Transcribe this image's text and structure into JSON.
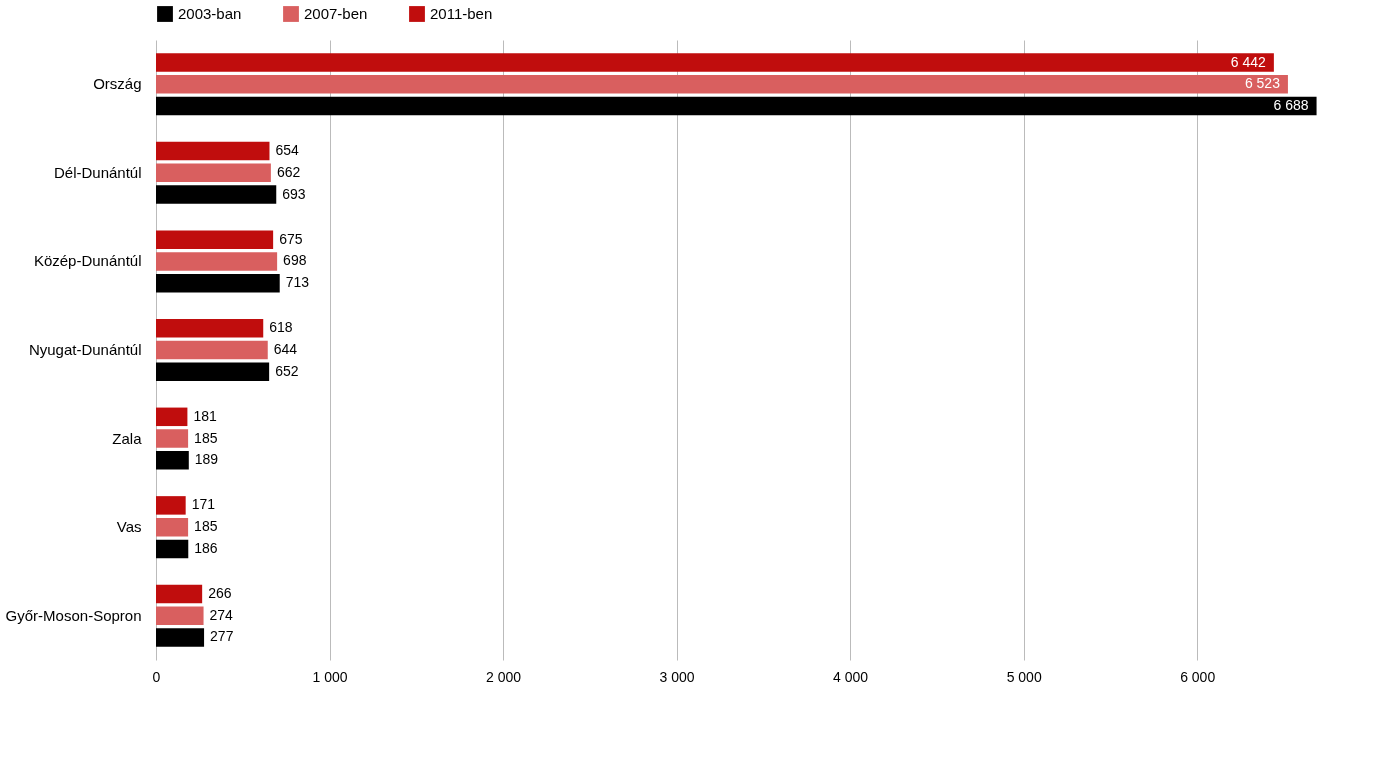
{
  "chart_data": {
    "type": "bar",
    "orientation": "horizontal",
    "categories": [
      "Ország",
      "Dél-Dunántúl",
      "Közép-Dunántúl",
      "Nyugat-Dunántúl",
      "Zala",
      "Vas",
      "Győr-Moson-Sopron"
    ],
    "series": [
      {
        "name": "2003-ban",
        "color": "#000000",
        "values": [
          6688,
          693,
          713,
          652,
          189,
          186,
          277
        ]
      },
      {
        "name": "2007-ben",
        "color": "#d95f5f",
        "values": [
          6523,
          662,
          698,
          644,
          185,
          185,
          274
        ]
      },
      {
        "name": "2011-ben",
        "color": "#c00d0d",
        "values": [
          6442,
          654,
          675,
          618,
          181,
          171,
          266
        ]
      }
    ],
    "xlim": [
      0,
      6800
    ],
    "xticks": [
      {
        "value": 0,
        "label": "0"
      },
      {
        "value": 1000,
        "label": "1 000"
      },
      {
        "value": 2000,
        "label": "2 000"
      },
      {
        "value": 3000,
        "label": "3 000"
      },
      {
        "value": 4000,
        "label": "4 000"
      },
      {
        "value": 5000,
        "label": "5 000"
      },
      {
        "value": 6000,
        "label": "6 000"
      }
    ],
    "grid": "x",
    "legend": "top left",
    "data_labels": true
  }
}
